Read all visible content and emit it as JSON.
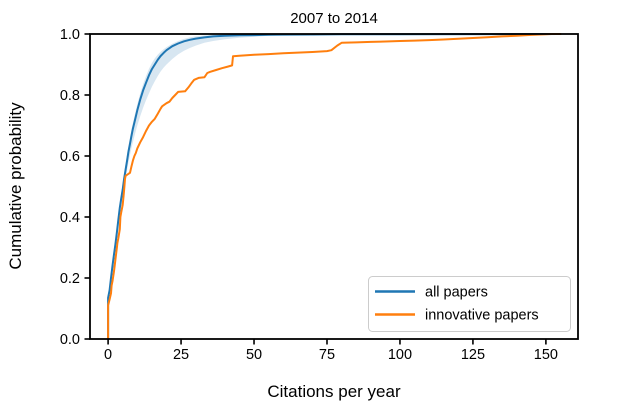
{
  "chart_data": {
    "type": "line",
    "title": "2007 to 2014",
    "xlabel": "Citations per year",
    "ylabel": "Cumulative probability",
    "xlim": [
      -6.2,
      161
    ],
    "ylim": [
      0,
      1
    ],
    "grid": false,
    "legend_position": "lower right",
    "xticks": [
      0,
      25,
      50,
      75,
      100,
      125,
      150
    ],
    "xtick_labels": [
      "0",
      "25",
      "50",
      "75",
      "100",
      "125",
      "150"
    ],
    "yticks": [
      0.0,
      0.2,
      0.4,
      0.6,
      0.8,
      1.0
    ],
    "ytick_labels": [
      "0.0",
      "0.2",
      "0.4",
      "0.6",
      "0.8",
      "1.0"
    ],
    "series": [
      {
        "name": "all papers",
        "color": "#1f77b4",
        "points": [
          [
            0,
            0
          ],
          [
            0,
            0.135
          ],
          [
            0.5,
            0.16
          ],
          [
            1,
            0.2
          ],
          [
            1.5,
            0.24
          ],
          [
            2,
            0.275
          ],
          [
            2.5,
            0.31
          ],
          [
            3,
            0.35
          ],
          [
            3.5,
            0.39
          ],
          [
            4,
            0.43
          ],
          [
            4.5,
            0.46
          ],
          [
            5,
            0.49
          ],
          [
            5.5,
            0.525
          ],
          [
            6,
            0.555
          ],
          [
            6.5,
            0.585
          ],
          [
            7,
            0.615
          ],
          [
            7.5,
            0.64
          ],
          [
            8,
            0.665
          ],
          [
            8.5,
            0.69
          ],
          [
            9,
            0.71
          ],
          [
            10,
            0.75
          ],
          [
            11,
            0.785
          ],
          [
            12,
            0.815
          ],
          [
            13,
            0.84
          ],
          [
            14,
            0.865
          ],
          [
            15,
            0.885
          ],
          [
            16,
            0.9
          ],
          [
            17,
            0.915
          ],
          [
            18,
            0.928
          ],
          [
            19,
            0.938
          ],
          [
            20,
            0.947
          ],
          [
            22,
            0.96
          ],
          [
            24,
            0.969
          ],
          [
            26,
            0.976
          ],
          [
            28,
            0.981
          ],
          [
            30,
            0.985
          ],
          [
            33,
            0.989
          ],
          [
            36,
            0.992
          ],
          [
            40,
            0.994
          ],
          [
            45,
            0.996
          ],
          [
            50,
            0.9965
          ],
          [
            55,
            0.9975
          ],
          [
            60,
            0.998
          ],
          [
            70,
            0.9985
          ],
          [
            80,
            0.999
          ],
          [
            100,
            0.9995
          ],
          [
            155,
            1.0
          ]
        ]
      },
      {
        "name": "innovative papers",
        "color": "#ff7f0e",
        "points": [
          [
            0,
            0
          ],
          [
            0,
            0.11
          ],
          [
            0.5,
            0.13
          ],
          [
            1,
            0.15
          ],
          [
            1.2,
            0.175
          ],
          [
            1.5,
            0.19
          ],
          [
            2,
            0.22
          ],
          [
            2.2,
            0.235
          ],
          [
            2.5,
            0.26
          ],
          [
            3,
            0.3
          ],
          [
            3.2,
            0.315
          ],
          [
            3.5,
            0.33
          ],
          [
            4,
            0.36
          ],
          [
            4.2,
            0.4
          ],
          [
            4.5,
            0.415
          ],
          [
            5,
            0.44
          ],
          [
            5.3,
            0.47
          ],
          [
            5.6,
            0.5
          ],
          [
            5.8,
            0.525
          ],
          [
            6,
            0.535
          ],
          [
            7.5,
            0.545
          ],
          [
            8,
            0.565
          ],
          [
            8.5,
            0.585
          ],
          [
            9,
            0.6
          ],
          [
            9.5,
            0.61
          ],
          [
            10,
            0.625
          ],
          [
            11,
            0.645
          ],
          [
            12,
            0.662
          ],
          [
            13,
            0.682
          ],
          [
            14,
            0.7
          ],
          [
            15,
            0.712
          ],
          [
            16,
            0.722
          ],
          [
            17,
            0.738
          ],
          [
            18,
            0.755
          ],
          [
            18.5,
            0.763
          ],
          [
            20,
            0.773
          ],
          [
            21,
            0.778
          ],
          [
            22,
            0.79
          ],
          [
            23,
            0.8
          ],
          [
            24,
            0.81
          ],
          [
            26.4,
            0.812
          ],
          [
            27.5,
            0.825
          ],
          [
            28.5,
            0.838
          ],
          [
            29.5,
            0.85
          ],
          [
            31,
            0.856
          ],
          [
            33,
            0.858
          ],
          [
            34,
            0.872
          ],
          [
            35,
            0.876
          ],
          [
            37,
            0.882
          ],
          [
            39,
            0.888
          ],
          [
            41,
            0.893
          ],
          [
            42.5,
            0.897
          ],
          [
            42.8,
            0.927
          ],
          [
            45,
            0.929
          ],
          [
            50,
            0.932
          ],
          [
            55,
            0.934
          ],
          [
            60,
            0.937
          ],
          [
            65,
            0.939
          ],
          [
            70,
            0.941
          ],
          [
            75,
            0.944
          ],
          [
            76.5,
            0.947
          ],
          [
            78.5,
            0.962
          ],
          [
            80,
            0.971
          ],
          [
            85,
            0.9725
          ],
          [
            90,
            0.974
          ],
          [
            95,
            0.9755
          ],
          [
            100,
            0.977
          ],
          [
            105,
            0.9785
          ],
          [
            110,
            0.98
          ],
          [
            115,
            0.982
          ],
          [
            120,
            0.9845
          ],
          [
            125,
            0.987
          ],
          [
            130,
            0.9895
          ],
          [
            135,
            0.992
          ],
          [
            140,
            0.9945
          ],
          [
            145,
            0.997
          ],
          [
            150,
            0.9995
          ],
          [
            152,
            1.0
          ],
          [
            155,
            1.0
          ]
        ]
      }
    ],
    "confidence_band": {
      "for_series": "all papers",
      "color": "#1f77b4",
      "opacity": 0.18,
      "upper": [
        [
          0,
          0
        ],
        [
          0,
          0.14
        ],
        [
          1,
          0.215
        ],
        [
          2,
          0.29
        ],
        [
          3,
          0.365
        ],
        [
          4,
          0.445
        ],
        [
          5,
          0.51
        ],
        [
          6,
          0.575
        ],
        [
          7,
          0.635
        ],
        [
          8,
          0.685
        ],
        [
          9,
          0.73
        ],
        [
          10,
          0.77
        ],
        [
          11,
          0.805
        ],
        [
          12,
          0.835
        ],
        [
          13,
          0.862
        ],
        [
          14,
          0.886
        ],
        [
          15,
          0.905
        ],
        [
          16,
          0.92
        ],
        [
          17,
          0.932
        ],
        [
          18,
          0.942
        ],
        [
          19,
          0.95
        ],
        [
          20,
          0.957
        ],
        [
          22,
          0.968
        ],
        [
          24,
          0.977
        ],
        [
          26,
          0.984
        ],
        [
          28,
          0.989
        ],
        [
          30,
          0.992
        ],
        [
          33,
          0.995
        ],
        [
          36,
          0.997
        ],
        [
          40,
          0.9985
        ],
        [
          45,
          0.9995
        ],
        [
          50,
          1.0
        ],
        [
          60,
          1.0
        ]
      ],
      "lower": [
        [
          0,
          0
        ],
        [
          0,
          0.13
        ],
        [
          1,
          0.185
        ],
        [
          2,
          0.255
        ],
        [
          3,
          0.325
        ],
        [
          4,
          0.4
        ],
        [
          5,
          0.465
        ],
        [
          6,
          0.525
        ],
        [
          7,
          0.58
        ],
        [
          8,
          0.625
        ],
        [
          9,
          0.665
        ],
        [
          10,
          0.7
        ],
        [
          11,
          0.73
        ],
        [
          12,
          0.758
        ],
        [
          13,
          0.783
        ],
        [
          14,
          0.806
        ],
        [
          15,
          0.827
        ],
        [
          16,
          0.845
        ],
        [
          17,
          0.862
        ],
        [
          18,
          0.877
        ],
        [
          19,
          0.89
        ],
        [
          20,
          0.9
        ],
        [
          22,
          0.918
        ],
        [
          24,
          0.933
        ],
        [
          26,
          0.945
        ],
        [
          28,
          0.954
        ],
        [
          30,
          0.962
        ],
        [
          33,
          0.971
        ],
        [
          36,
          0.977
        ],
        [
          40,
          0.983
        ],
        [
          45,
          0.988
        ],
        [
          50,
          0.991
        ],
        [
          55,
          0.994
        ],
        [
          60,
          0.996
        ],
        [
          65,
          0.9975
        ],
        [
          70,
          0.9985
        ],
        [
          75,
          0.999
        ],
        [
          80,
          1.0
        ]
      ]
    },
    "legend": {
      "entries": [
        {
          "label": "all papers",
          "color": "#1f77b4"
        },
        {
          "label": "innovative papers",
          "color": "#ff7f0e"
        }
      ]
    },
    "axis_color": "#000000"
  }
}
